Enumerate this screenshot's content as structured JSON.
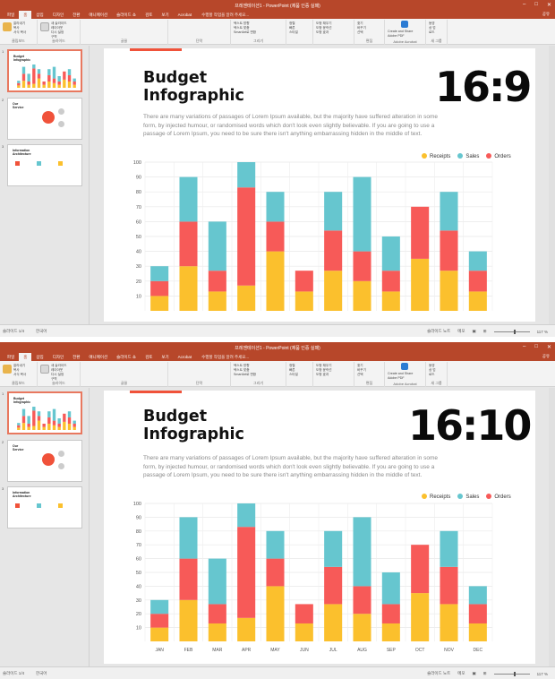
{
  "app": {
    "window_title": "프레젠테이션1 - PowerPoint (제품 인증 실패)",
    "tabs": [
      "파일",
      "홈",
      "삽입",
      "디자인",
      "전환",
      "애니메이션",
      "슬라이드 쇼",
      "검토",
      "보기",
      "Acrobat"
    ],
    "tell_me": "수행할 작업을 알려 주세요...",
    "share": "공유",
    "ribbon_groups": [
      {
        "label": "클립보드",
        "text": "잘라내기\n복사\n서식 복사"
      },
      {
        "label": "슬라이드",
        "text": "새 슬라이드\n레이아웃\n다시 설정\n구역"
      },
      {
        "label": "글꼴",
        "text": ""
      },
      {
        "label": "단락",
        "text": ""
      },
      {
        "label": "그리기",
        "text": "텍스트 방향\n텍스트 맞춤\nSmartArt로 변환"
      },
      {
        "label": "",
        "text": "정렬\n빠른\n스타일"
      },
      {
        "label": "",
        "text": "도형 채우기\n도형 윤곽선\n도형 효과"
      },
      {
        "label": "편집",
        "text": "찾기\n바꾸기\n선택"
      },
      {
        "label": "Adobe Acrobat",
        "text": "Create and Share\nAdobe PDF"
      },
      {
        "label": "새 그룹",
        "text": "동영\n상 업\n로드"
      }
    ],
    "status": {
      "slide": "슬라이드 1/4",
      "language": "한국어",
      "notes": "슬라이드 노트",
      "comments": "메모",
      "zoom": "117 %"
    }
  },
  "thumbnails": [
    {
      "num": "1",
      "title": "Budget\nInfographic"
    },
    {
      "num": "2",
      "title": "Our\nService"
    },
    {
      "num": "3",
      "title": "Information\nArchitecture"
    }
  ],
  "slide": {
    "title_line1": "Budget",
    "title_line2": "Infographic",
    "ratio_top": "16:9",
    "ratio_bottom": "16:10",
    "body": "There are many variations of passages of Lorem Ipsum available, but the majority have suffered alteration in some form, by injected humour, or randomised words which don't look even slightly believable. If you are going to use a passage of Lorem Ipsum, you need to be sure there isn't anything embarrassing hidden in the middle of text."
  },
  "chart_data": {
    "type": "bar",
    "stacked": true,
    "categories": [
      "JAN",
      "FEB",
      "MAR",
      "APR",
      "MAY",
      "JUN",
      "JUL",
      "AUG",
      "SEP",
      "OCT",
      "NOV",
      "DEC"
    ],
    "series": [
      {
        "name": "Receipts",
        "color": "#fbc02d",
        "values": [
          10,
          30,
          13,
          17,
          40,
          13,
          27,
          20,
          13,
          35,
          27,
          13
        ]
      },
      {
        "name": "Orders",
        "color": "#f75a58",
        "values": [
          10,
          30,
          14,
          66,
          20,
          14,
          27,
          20,
          14,
          35,
          27,
          14
        ]
      },
      {
        "name": "Sales",
        "color": "#66c6cf",
        "values": [
          10,
          30,
          33,
          17,
          20,
          0,
          26,
          50,
          23,
          0,
          26,
          13
        ]
      }
    ],
    "legend_order": [
      "Receipts",
      "Sales",
      "Orders"
    ],
    "yticks": [
      10,
      20,
      30,
      40,
      50,
      60,
      70,
      80,
      90,
      100
    ],
    "ylim": [
      0,
      100
    ],
    "grid": true,
    "legend_position": "top-right"
  }
}
